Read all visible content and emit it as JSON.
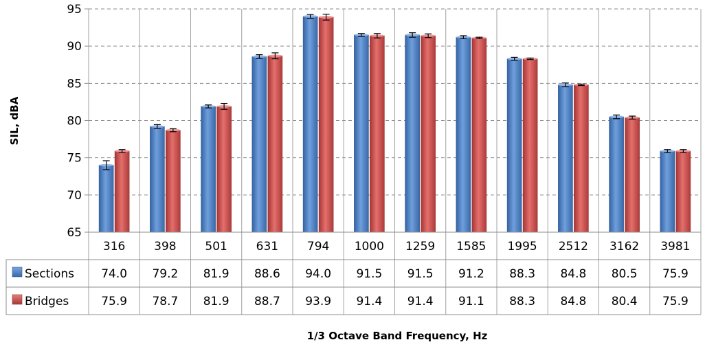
{
  "chart_data": {
    "type": "bar",
    "title": "",
    "xlabel": "1/3 Octave Band Frequency,  Hz",
    "ylabel": "SIL, dBA",
    "ylim": [
      65,
      95
    ],
    "yticks": [
      "65",
      "70",
      "75",
      "80",
      "85",
      "90",
      "95"
    ],
    "grid": "horizontal dashed",
    "legend": "data table rows",
    "categories": [
      "316",
      "398",
      "501",
      "631",
      "794",
      "1000",
      "1259",
      "1585",
      "1995",
      "2512",
      "3162",
      "3981"
    ],
    "series": [
      {
        "name": "Sections",
        "color": "#4f81bd",
        "values": [
          74.0,
          79.2,
          81.9,
          88.6,
          94.0,
          91.5,
          91.5,
          91.2,
          88.3,
          84.8,
          80.5,
          75.9
        ],
        "labels": [
          "74.0",
          "79.2",
          "81.9",
          "88.6",
          "94.0",
          "91.5",
          "91.5",
          "91.2",
          "88.3",
          "84.8",
          "80.5",
          "75.9"
        ],
        "error_half_width": [
          0.6,
          0.25,
          0.2,
          0.25,
          0.25,
          0.2,
          0.3,
          0.2,
          0.2,
          0.25,
          0.25,
          0.2
        ]
      },
      {
        "name": "Bridges",
        "color": "#c0504d",
        "values": [
          75.9,
          78.7,
          81.9,
          88.7,
          93.9,
          91.4,
          91.4,
          91.1,
          88.3,
          84.8,
          80.4,
          75.9
        ],
        "labels": [
          "75.9",
          "78.7",
          "81.9",
          "88.7",
          "93.9",
          "91.4",
          "91.4",
          "91.1",
          "88.3",
          "84.8",
          "80.4",
          "75.9"
        ],
        "error_half_width": [
          0.2,
          0.2,
          0.4,
          0.4,
          0.4,
          0.3,
          0.25,
          0.1,
          0.1,
          0.1,
          0.2,
          0.2
        ]
      }
    ]
  }
}
